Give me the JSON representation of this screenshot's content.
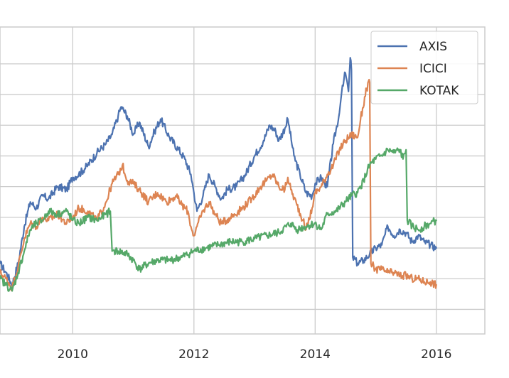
{
  "chart_data": {
    "type": "line",
    "title": "",
    "xlabel": "",
    "ylabel": "",
    "grid": true,
    "legend_position": "top-right",
    "x_ticks": [
      2010,
      2012,
      2014,
      2016
    ],
    "x_tick_labels": [
      "2010",
      "2012",
      "2014",
      "2016"
    ],
    "xlim": [
      2008.8,
      2016.8
    ],
    "ylim": [
      0,
      100
    ],
    "y_grid_values": [
      8,
      18,
      28,
      38,
      48,
      58,
      68,
      78,
      88
    ],
    "series": [
      {
        "name": "AXIS",
        "color": "#4c72b0",
        "points": [
          [
            2008.8,
            23
          ],
          [
            2008.9,
            20
          ],
          [
            2009.0,
            16
          ],
          [
            2009.1,
            23
          ],
          [
            2009.2,
            35
          ],
          [
            2009.3,
            43
          ],
          [
            2009.4,
            41
          ],
          [
            2009.5,
            45
          ],
          [
            2009.6,
            44
          ],
          [
            2009.75,
            48
          ],
          [
            2009.9,
            47
          ],
          [
            2010.0,
            51
          ],
          [
            2010.1,
            52
          ],
          [
            2010.25,
            55
          ],
          [
            2010.4,
            59
          ],
          [
            2010.55,
            62
          ],
          [
            2010.65,
            65
          ],
          [
            2010.75,
            71
          ],
          [
            2010.8,
            74
          ],
          [
            2010.9,
            71
          ],
          [
            2011.0,
            65
          ],
          [
            2011.1,
            69
          ],
          [
            2011.25,
            61
          ],
          [
            2011.35,
            66
          ],
          [
            2011.45,
            70
          ],
          [
            2011.6,
            64
          ],
          [
            2011.75,
            60
          ],
          [
            2011.85,
            57
          ],
          [
            2011.95,
            52
          ],
          [
            2012.0,
            46
          ],
          [
            2012.05,
            40
          ],
          [
            2012.15,
            45
          ],
          [
            2012.25,
            52
          ],
          [
            2012.35,
            48
          ],
          [
            2012.45,
            44
          ],
          [
            2012.55,
            47
          ],
          [
            2012.7,
            48
          ],
          [
            2012.85,
            52
          ],
          [
            2013.0,
            58
          ],
          [
            2013.15,
            63
          ],
          [
            2013.25,
            68
          ],
          [
            2013.35,
            66
          ],
          [
            2013.4,
            63
          ],
          [
            2013.5,
            67
          ],
          [
            2013.55,
            70
          ],
          [
            2013.65,
            58
          ],
          [
            2013.75,
            52
          ],
          [
            2013.85,
            46
          ],
          [
            2013.95,
            45
          ],
          [
            2014.0,
            49
          ],
          [
            2014.1,
            51
          ],
          [
            2014.2,
            48
          ],
          [
            2014.3,
            62
          ],
          [
            2014.4,
            72
          ],
          [
            2014.45,
            81
          ],
          [
            2014.5,
            85
          ],
          [
            2014.55,
            79
          ],
          [
            2014.58,
            90
          ],
          [
            2014.6,
            86
          ],
          [
            2014.62,
            25
          ],
          [
            2014.7,
            23
          ],
          [
            2014.8,
            24
          ],
          [
            2014.9,
            26
          ],
          [
            2015.0,
            28
          ],
          [
            2015.1,
            29
          ],
          [
            2015.2,
            35
          ],
          [
            2015.3,
            32
          ],
          [
            2015.4,
            34
          ],
          [
            2015.5,
            33
          ],
          [
            2015.6,
            30
          ],
          [
            2015.7,
            32
          ],
          [
            2015.8,
            30
          ],
          [
            2015.9,
            29
          ],
          [
            2016.0,
            28
          ]
        ]
      },
      {
        "name": "ICICI",
        "color": "#dd8452",
        "points": [
          [
            2008.8,
            20
          ],
          [
            2008.9,
            18
          ],
          [
            2009.0,
            15
          ],
          [
            2009.1,
            22
          ],
          [
            2009.2,
            31
          ],
          [
            2009.3,
            36
          ],
          [
            2009.4,
            35
          ],
          [
            2009.5,
            38
          ],
          [
            2009.6,
            37
          ],
          [
            2009.75,
            39
          ],
          [
            2009.9,
            36
          ],
          [
            2010.0,
            38
          ],
          [
            2010.1,
            41
          ],
          [
            2010.25,
            40
          ],
          [
            2010.4,
            37
          ],
          [
            2010.55,
            43
          ],
          [
            2010.65,
            49
          ],
          [
            2010.75,
            52
          ],
          [
            2010.82,
            55
          ],
          [
            2010.9,
            50
          ],
          [
            2011.0,
            49
          ],
          [
            2011.1,
            47
          ],
          [
            2011.25,
            43
          ],
          [
            2011.4,
            46
          ],
          [
            2011.55,
            43
          ],
          [
            2011.7,
            45
          ],
          [
            2011.8,
            42
          ],
          [
            2011.9,
            40
          ],
          [
            2011.95,
            35
          ],
          [
            2012.0,
            32
          ],
          [
            2012.05,
            35
          ],
          [
            2012.15,
            40
          ],
          [
            2012.25,
            43
          ],
          [
            2012.35,
            39
          ],
          [
            2012.45,
            36
          ],
          [
            2012.6,
            38
          ],
          [
            2012.8,
            41
          ],
          [
            2012.95,
            44
          ],
          [
            2013.1,
            48
          ],
          [
            2013.2,
            50
          ],
          [
            2013.3,
            52
          ],
          [
            2013.4,
            48
          ],
          [
            2013.5,
            47
          ],
          [
            2013.55,
            51
          ],
          [
            2013.6,
            47
          ],
          [
            2013.7,
            42
          ],
          [
            2013.8,
            37
          ],
          [
            2013.85,
            34
          ],
          [
            2013.95,
            41
          ],
          [
            2014.0,
            46
          ],
          [
            2014.1,
            48
          ],
          [
            2014.2,
            52
          ],
          [
            2014.3,
            55
          ],
          [
            2014.4,
            60
          ],
          [
            2014.5,
            63
          ],
          [
            2014.6,
            65
          ],
          [
            2014.7,
            64
          ],
          [
            2014.75,
            70
          ],
          [
            2014.85,
            80
          ],
          [
            2014.9,
            82
          ],
          [
            2014.92,
            23
          ],
          [
            2015.0,
            21
          ],
          [
            2015.1,
            21
          ],
          [
            2015.2,
            20
          ],
          [
            2015.3,
            20
          ],
          [
            2015.4,
            19
          ],
          [
            2015.5,
            19
          ],
          [
            2015.6,
            18
          ],
          [
            2015.7,
            18
          ],
          [
            2015.8,
            17
          ],
          [
            2015.9,
            17
          ],
          [
            2016.0,
            16
          ]
        ]
      },
      {
        "name": "KOTAK",
        "color": "#55a868",
        "points": [
          [
            2008.8,
            18
          ],
          [
            2008.9,
            16
          ],
          [
            2009.0,
            14
          ],
          [
            2009.1,
            20
          ],
          [
            2009.2,
            27
          ],
          [
            2009.3,
            34
          ],
          [
            2009.4,
            36
          ],
          [
            2009.5,
            37
          ],
          [
            2009.6,
            40
          ],
          [
            2009.75,
            39
          ],
          [
            2009.9,
            40
          ],
          [
            2010.0,
            37
          ],
          [
            2010.1,
            36
          ],
          [
            2010.25,
            38
          ],
          [
            2010.4,
            37
          ],
          [
            2010.55,
            39
          ],
          [
            2010.62,
            40
          ],
          [
            2010.65,
            27
          ],
          [
            2010.75,
            27
          ],
          [
            2010.9,
            26
          ],
          [
            2011.0,
            24
          ],
          [
            2011.1,
            21
          ],
          [
            2011.25,
            23
          ],
          [
            2011.4,
            24
          ],
          [
            2011.6,
            24
          ],
          [
            2011.8,
            25
          ],
          [
            2012.0,
            27
          ],
          [
            2012.2,
            28
          ],
          [
            2012.4,
            29
          ],
          [
            2012.6,
            30
          ],
          [
            2012.8,
            30
          ],
          [
            2013.0,
            31
          ],
          [
            2013.2,
            32
          ],
          [
            2013.4,
            33
          ],
          [
            2013.6,
            36
          ],
          [
            2013.7,
            34
          ],
          [
            2013.85,
            35
          ],
          [
            2014.0,
            36
          ],
          [
            2014.1,
            34
          ],
          [
            2014.2,
            39
          ],
          [
            2014.35,
            40
          ],
          [
            2014.5,
            43
          ],
          [
            2014.6,
            45
          ],
          [
            2014.7,
            46
          ],
          [
            2014.8,
            50
          ],
          [
            2014.9,
            55
          ],
          [
            2015.0,
            57
          ],
          [
            2015.1,
            58
          ],
          [
            2015.2,
            60
          ],
          [
            2015.3,
            59
          ],
          [
            2015.4,
            60
          ],
          [
            2015.45,
            57
          ],
          [
            2015.5,
            60
          ],
          [
            2015.52,
            37
          ],
          [
            2015.6,
            35
          ],
          [
            2015.7,
            34
          ],
          [
            2015.8,
            35
          ],
          [
            2015.9,
            36
          ],
          [
            2016.0,
            37
          ]
        ]
      }
    ]
  }
}
